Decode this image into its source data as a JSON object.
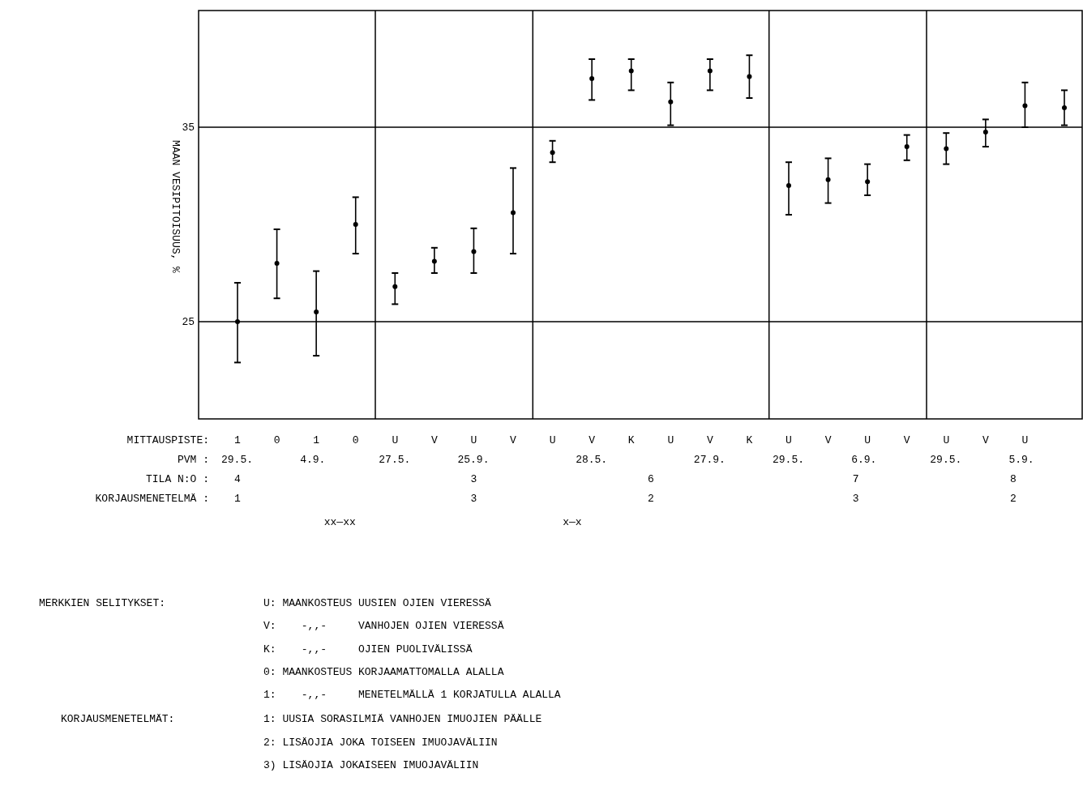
{
  "chart_data": {
    "type": "scatter",
    "ylabel": "MAAN VESIPITOISUUS, %",
    "categories": [
      "1",
      "0",
      "1",
      "0",
      "U",
      "V",
      "U",
      "V",
      "U",
      "V",
      "K",
      "U",
      "V",
      "K",
      "U",
      "V",
      "U",
      "V",
      "U",
      "V",
      "U",
      null
    ],
    "series": [
      {
        "color": "#000000",
        "values": [
          25.0,
          28.0,
          25.5,
          30.0,
          26.8,
          28.1,
          28.6,
          30.6,
          33.7,
          37.5,
          37.9,
          36.3,
          37.9,
          37.6,
          32.0,
          32.3,
          32.2,
          34.0,
          33.9,
          34.75,
          36.1,
          36.0
        ],
        "errors": [
          [
            22.9,
            27.0
          ],
          [
            26.2,
            29.75
          ],
          [
            23.25,
            27.6
          ],
          [
            28.5,
            31.4
          ],
          [
            25.9,
            27.5
          ],
          [
            27.5,
            28.8
          ],
          [
            27.5,
            29.8
          ],
          [
            28.5,
            32.9
          ],
          [
            33.2,
            34.3
          ],
          [
            36.4,
            38.5
          ],
          [
            36.9,
            38.5
          ],
          [
            35.1,
            37.3
          ],
          [
            36.9,
            38.5
          ],
          [
            36.5,
            38.7
          ],
          [
            30.5,
            33.2
          ],
          [
            31.1,
            33.4
          ],
          [
            31.5,
            33.1
          ],
          [
            33.3,
            34.6
          ],
          [
            33.1,
            34.7
          ],
          [
            34.0,
            35.4
          ],
          [
            35.0,
            37.3
          ],
          [
            35.1,
            36.9
          ]
        ]
      }
    ],
    "marker": "circle",
    "ylim": [
      20,
      41
    ],
    "yticks": [
      25,
      35
    ],
    "grid": "y",
    "annotations": [
      "MITTAUSPISTE:",
      "PVM :",
      "TILA N:O :",
      "KORJAUSMENETELMÄ :",
      "29.5.",
      "4.9.",
      "27.5.",
      "25.9.",
      "28.5.",
      "27.9.",
      "29.5.",
      "6.9.",
      "29.5.",
      "5.9.",
      "4",
      "3",
      "6",
      "7",
      "8",
      "1",
      "3",
      "2",
      "3",
      "2",
      "xx—xx",
      "x—x",
      "MERKKIEN SELITYKSET:",
      "U: MAANKOSTEUS UUSIEN OJIEN VIERESSÄ",
      "V:    -,,-     VANHOJEN OJIEN VIERESSÄ",
      "K:    -,,-     OJIEN PUOLIVÄLISSÄ",
      "0: MAANKOSTEUS KORJAAMATTOMALLA ALALLA",
      "1:    -,,-     MENETELMÄLLÄ 1 KORJATULLA ALALLA",
      "KORJAUSMENETELMÄT:",
      "1: UUSIA SORASILMIÄ VANHOJEN IMUOJIEN PÄÄLLE",
      "2: LISÄOJIA JOKA TOISEEN IMUOJAVÄLIIN",
      "3) LISÄOJIA JOKAISEEN IMUOJAVÄLIIN"
    ]
  }
}
